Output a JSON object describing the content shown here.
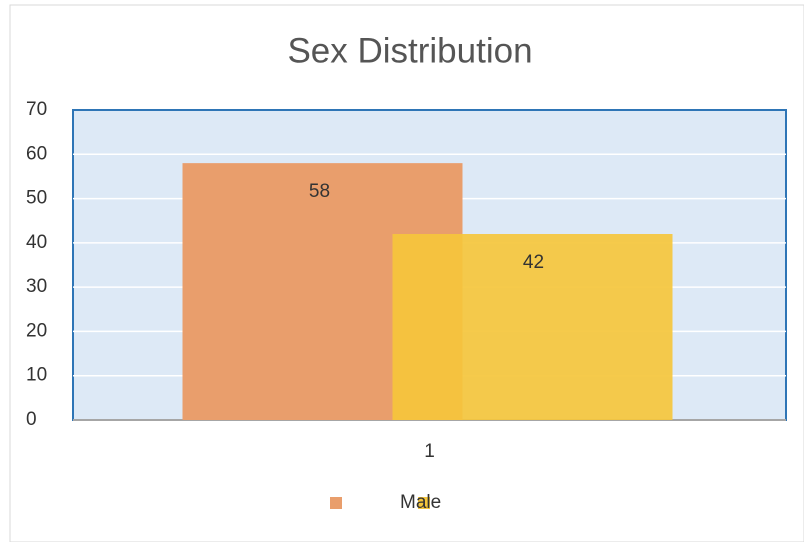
{
  "chart_data": {
    "type": "bar",
    "title": "Sex Distribution",
    "categories": [
      "1"
    ],
    "series": [
      {
        "name": null,
        "color": "#e99e6c",
        "values": [
          58
        ]
      },
      {
        "name": "Male",
        "color": "#f5c63c",
        "values": [
          42
        ]
      }
    ],
    "ylim": [
      0,
      70
    ],
    "yticks": [
      0,
      10,
      20,
      30,
      40,
      50,
      60,
      70
    ],
    "grid": true,
    "legend": "bottom"
  }
}
